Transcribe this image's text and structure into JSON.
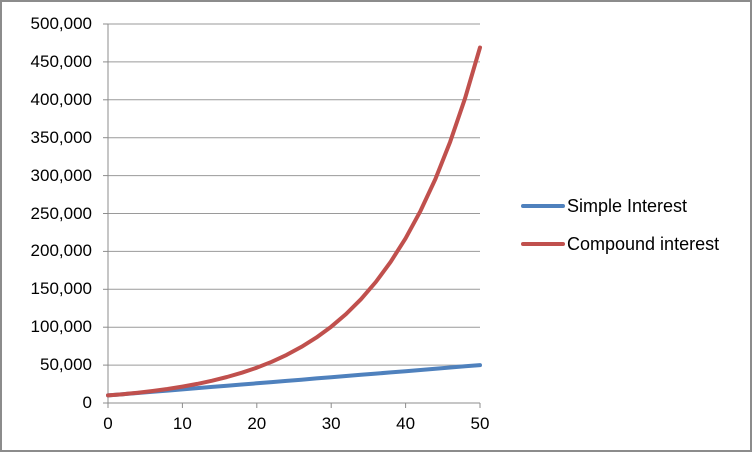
{
  "chart_data": {
    "type": "line",
    "title": "",
    "xlabel": "",
    "ylabel": "",
    "x": [
      0,
      2,
      4,
      6,
      8,
      10,
      12,
      14,
      16,
      18,
      20,
      22,
      24,
      26,
      28,
      30,
      32,
      34,
      36,
      38,
      40,
      42,
      44,
      46,
      48,
      50
    ],
    "series": [
      {
        "name": "Simple Interest",
        "color": "#4f81bd",
        "values": [
          10000,
          11600,
          13200,
          14800,
          16400,
          18000,
          19600,
          21200,
          22800,
          24400,
          26000,
          27600,
          29200,
          30800,
          32400,
          34000,
          35600,
          37200,
          38800,
          40400,
          42000,
          43600,
          45200,
          46800,
          48400,
          50000
        ]
      },
      {
        "name": "Compound interest",
        "color": "#c0504d",
        "values": [
          10000,
          11664,
          13605,
          15869,
          18509,
          21589,
          25182,
          29372,
          34259,
          39960,
          46610,
          54365,
          63412,
          73964,
          86271,
          100627,
          117371,
          136901,
          159682,
          186253,
          217245,
          253395,
          295560,
          344741,
          402106,
          469016
        ]
      }
    ],
    "xlim": [
      0,
      50
    ],
    "ylim": [
      0,
      500000
    ],
    "x_tick_labels": [
      "0",
      "10",
      "20",
      "30",
      "40",
      "50"
    ],
    "y_tick_labels": [
      "0",
      "50,000",
      "100,000",
      "150,000",
      "200,000",
      "250,000",
      "300,000",
      "350,000",
      "400,000",
      "450,000",
      "500,000"
    ],
    "grid": true,
    "legend_position": "right"
  },
  "colors": {
    "background": "#ffffff",
    "frame_border": "#8c8c8c",
    "gridline": "#9a9a9a",
    "axis": "#8c8c8c",
    "tick": "#8c8c8c",
    "label_text": "#000000"
  }
}
